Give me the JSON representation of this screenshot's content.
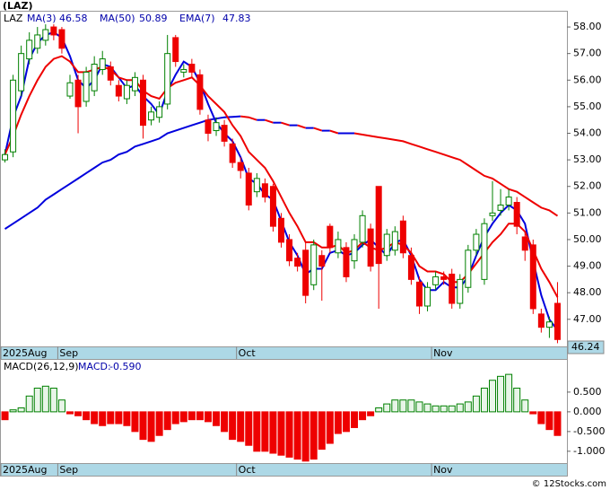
{
  "chart_data": [
    {
      "type": "candlestick",
      "title": "(LAZ)",
      "symbol": "LAZ",
      "categories": [
        "2025Aug",
        null,
        null,
        null,
        null,
        null,
        null,
        "Sep",
        null,
        null,
        null,
        null,
        null,
        null,
        null,
        null,
        null,
        null,
        null,
        null,
        null,
        null,
        null,
        null,
        null,
        null,
        null,
        null,
        null,
        "Oct",
        null,
        null,
        null,
        null,
        null,
        null,
        null,
        null,
        null,
        null,
        null,
        null,
        null,
        null,
        null,
        null,
        null,
        null,
        null,
        null,
        null,
        null,
        null,
        "Nov",
        null,
        null,
        null,
        null,
        null,
        null,
        null,
        null,
        null,
        null,
        null,
        null,
        null,
        null,
        null
      ],
      "open": [
        53.0,
        53.3,
        55.6,
        56.8,
        57.2,
        57.5,
        58.0,
        57.9,
        55.4,
        56.0,
        55.2,
        55.6,
        56.4,
        56.5,
        55.8,
        55.3,
        55.6,
        56.0,
        54.5,
        54.6,
        55.1,
        57.6,
        56.3,
        56.6,
        56.2,
        54.5,
        54.1,
        54.3,
        53.6,
        52.9,
        52.5,
        51.8,
        52.1,
        52.0,
        50.8,
        50.0,
        49.3,
        49.6,
        48.3,
        49.4,
        50.5,
        49.5,
        49.7,
        49.2,
        49.9,
        50.4,
        52.0,
        49.4,
        49.6,
        50.7,
        49.4,
        48.4,
        47.5,
        48.3,
        48.6,
        48.7,
        47.6,
        48.2,
        49.6,
        48.5,
        50.9,
        51.1,
        51.3,
        51.4,
        50.1,
        49.8,
        47.2,
        46.7,
        47.6
      ],
      "high": [
        53.4,
        56.2,
        57.3,
        57.8,
        58.0,
        58.1,
        58.1,
        58.0,
        56.2,
        56.2,
        56.5,
        56.9,
        57.1,
        56.7,
        56.0,
        56.0,
        56.3,
        56.2,
        55.0,
        55.2,
        57.7,
        57.7,
        56.6,
        56.8,
        56.4,
        54.7,
        54.6,
        54.5,
        53.8,
        53.1,
        52.7,
        52.5,
        52.3,
        52.1,
        51.0,
        50.2,
        49.5,
        49.9,
        50.0,
        49.6,
        50.6,
        50.3,
        49.9,
        50.2,
        51.1,
        50.6,
        52.0,
        50.4,
        50.5,
        50.9,
        49.7,
        48.6,
        48.4,
        48.8,
        48.8,
        48.9,
        48.7,
        49.8,
        50.4,
        50.8,
        52.2,
        51.9,
        51.9,
        51.6,
        50.3,
        50.0,
        47.4,
        47.1,
        48.4
      ],
      "low": [
        52.9,
        53.1,
        55.4,
        56.6,
        57.0,
        57.3,
        57.5,
        57.0,
        55.3,
        54.0,
        55.0,
        55.4,
        56.2,
        55.8,
        55.2,
        55.1,
        55.4,
        53.8,
        54.3,
        54.4,
        54.9,
        56.5,
        56.1,
        56.1,
        54.7,
        53.7,
        53.9,
        53.5,
        52.7,
        52.3,
        51.1,
        51.6,
        51.4,
        50.3,
        49.7,
        49.0,
        48.8,
        47.6,
        48.1,
        47.7,
        49.5,
        49.3,
        48.4,
        48.9,
        49.7,
        48.8,
        47.4,
        49.2,
        49.4,
        49.3,
        48.3,
        47.2,
        47.3,
        48.1,
        48.3,
        47.4,
        47.4,
        48.0,
        49.4,
        48.3,
        50.7,
        50.9,
        51.1,
        50.2,
        49.2,
        47.2,
        46.5,
        46.3,
        46.1
      ],
      "close": [
        53.2,
        56.0,
        57.0,
        57.5,
        57.7,
        57.9,
        57.7,
        57.2,
        55.9,
        55.0,
        56.3,
        56.6,
        56.8,
        56.0,
        55.4,
        55.8,
        56.1,
        54.3,
        54.8,
        55.0,
        57.0,
        56.7,
        56.4,
        56.3,
        54.9,
        54.0,
        54.4,
        53.7,
        52.9,
        52.6,
        51.3,
        52.3,
        51.6,
        50.5,
        49.9,
        49.2,
        49.0,
        47.9,
        49.8,
        49.0,
        49.7,
        50.0,
        48.6,
        50.0,
        50.9,
        49.0,
        49.1,
        50.2,
        50.3,
        49.5,
        48.5,
        47.5,
        48.2,
        48.6,
        48.5,
        47.6,
        48.5,
        49.6,
        50.2,
        50.6,
        51.0,
        51.3,
        51.6,
        50.5,
        49.6,
        47.4,
        46.7,
        46.9,
        46.24
      ],
      "up_color": "#008000",
      "down_color": "#ee0000",
      "series": [
        {
          "name": "MA(3)",
          "last": 46.58,
          "color": "#0000dd",
          "values": [
            53.2,
            54.6,
            55.4,
            56.8,
            57.4,
            57.7,
            57.8,
            57.6,
            56.9,
            56.0,
            55.7,
            56.0,
            56.6,
            56.5,
            56.1,
            55.7,
            55.8,
            55.4,
            55.1,
            54.7,
            55.6,
            56.2,
            56.7,
            56.5,
            55.9,
            55.1,
            54.4,
            54.0,
            53.7,
            53.1,
            52.3,
            52.1,
            51.7,
            51.5,
            50.7,
            49.9,
            49.4,
            48.7,
            48.9,
            48.9,
            49.5,
            49.6,
            49.4,
            49.5,
            49.8,
            50.0,
            49.7,
            49.4,
            49.9,
            50.0,
            49.4,
            48.5,
            48.1,
            48.1,
            48.4,
            48.2,
            48.2,
            48.6,
            49.4,
            50.1,
            50.6,
            51.0,
            51.3,
            51.1,
            50.6,
            49.2,
            47.9,
            47.0,
            46.58
          ]
        },
        {
          "name": "MA(50)",
          "last": 50.89,
          "up_color": "#0000dd",
          "down_color": "#ee0000",
          "values": [
            50.4,
            50.6,
            50.8,
            51.0,
            51.2,
            51.5,
            51.7,
            51.9,
            52.1,
            52.3,
            52.5,
            52.7,
            52.9,
            53.0,
            53.2,
            53.3,
            53.5,
            53.6,
            53.7,
            53.8,
            54.0,
            54.1,
            54.2,
            54.3,
            54.4,
            54.5,
            54.55,
            54.6,
            54.62,
            54.64,
            54.6,
            54.5,
            54.5,
            54.4,
            54.4,
            54.3,
            54.3,
            54.2,
            54.2,
            54.1,
            54.1,
            54.0,
            54.0,
            54.0,
            53.95,
            53.9,
            53.85,
            53.8,
            53.75,
            53.7,
            53.6,
            53.5,
            53.4,
            53.3,
            53.2,
            53.1,
            53.0,
            52.8,
            52.6,
            52.4,
            52.3,
            52.1,
            51.9,
            51.8,
            51.6,
            51.4,
            51.2,
            51.1,
            50.89
          ]
        },
        {
          "name": "EMA(7)",
          "last": 47.83,
          "color": "#ee0000",
          "values": [
            53.2,
            53.9,
            54.7,
            55.4,
            56.0,
            56.5,
            56.8,
            56.9,
            56.7,
            56.3,
            56.3,
            56.4,
            56.5,
            56.4,
            56.1,
            56.0,
            56.0,
            55.6,
            55.4,
            55.3,
            55.7,
            55.9,
            56.0,
            56.1,
            55.8,
            55.4,
            55.1,
            54.8,
            54.3,
            53.9,
            53.3,
            53.0,
            52.7,
            52.2,
            51.6,
            51.0,
            50.5,
            49.9,
            49.9,
            49.7,
            49.7,
            49.8,
            49.5,
            49.6,
            49.9,
            49.7,
            49.6,
            49.7,
            49.9,
            49.8,
            49.5,
            49.0,
            48.8,
            48.8,
            48.7,
            48.4,
            48.4,
            48.7,
            49.1,
            49.5,
            49.9,
            50.2,
            50.6,
            50.6,
            50.3,
            49.6,
            48.9,
            48.4,
            47.83
          ]
        }
      ],
      "ylim": [
        45.98,
        58.61
      ],
      "yticks": [
        {
          "value": 47,
          "label": "47.00"
        },
        {
          "value": 48,
          "label": "48.00"
        },
        {
          "value": 49,
          "label": "49.00"
        },
        {
          "value": 50,
          "label": "50.00"
        },
        {
          "value": 51,
          "label": "51.00"
        },
        {
          "value": 52,
          "label": "52.00"
        },
        {
          "value": 53,
          "label": "53.00"
        },
        {
          "value": 54,
          "label": "54.00"
        },
        {
          "value": 55,
          "label": "55.00"
        },
        {
          "value": 56,
          "label": "56.00"
        },
        {
          "value": 57,
          "label": "57.00"
        },
        {
          "value": 58,
          "label": "58.00"
        }
      ]
    },
    {
      "type": "bar",
      "title": "MACD(26,12,9)",
      "label": "MACD:",
      "macd": {
        "value": -0.59,
        "label": "-0.590"
      },
      "categories": [
        "2025Aug",
        null,
        null,
        null,
        null,
        null,
        null,
        "Sep",
        null,
        null,
        null,
        null,
        null,
        null,
        null,
        null,
        null,
        null,
        null,
        null,
        null,
        null,
        null,
        null,
        null,
        null,
        null,
        null,
        null,
        "Oct",
        null,
        null,
        null,
        null,
        null,
        null,
        null,
        null,
        null,
        null,
        null,
        null,
        null,
        null,
        null,
        null,
        null,
        null,
        null,
        null,
        null,
        null,
        null,
        "Nov",
        null,
        null,
        null,
        null,
        null,
        null,
        null,
        null,
        null,
        null,
        null,
        null,
        null,
        null,
        null
      ],
      "values": [
        -0.2,
        0.05,
        0.1,
        0.4,
        0.6,
        0.65,
        0.6,
        0.3,
        -0.05,
        -0.1,
        -0.2,
        -0.3,
        -0.35,
        -0.3,
        -0.3,
        -0.35,
        -0.5,
        -0.7,
        -0.75,
        -0.6,
        -0.45,
        -0.3,
        -0.25,
        -0.2,
        -0.2,
        -0.25,
        -0.35,
        -0.5,
        -0.7,
        -0.75,
        -0.85,
        -1.0,
        -1.0,
        -1.05,
        -1.1,
        -1.15,
        -1.2,
        -1.25,
        -1.2,
        -0.95,
        -0.8,
        -0.55,
        -0.5,
        -0.4,
        -0.2,
        -0.1,
        0.1,
        0.2,
        0.3,
        0.3,
        0.3,
        0.25,
        0.2,
        0.15,
        0.15,
        0.15,
        0.2,
        0.25,
        0.4,
        0.6,
        0.8,
        0.9,
        0.95,
        0.6,
        0.3,
        -0.05,
        -0.3,
        -0.45,
        -0.6
      ],
      "up_color": "#008000",
      "down_color": "#ee0000",
      "ylim": [
        -1.3,
        1.34
      ],
      "yticks": [
        {
          "value": 0.5,
          "label": "0.500"
        },
        {
          "value": 0,
          "label": "0.000"
        },
        {
          "value": -0.5,
          "label": "-0.500"
        },
        {
          "value": -1,
          "label": "-1.000"
        }
      ]
    }
  ],
  "credit": "© 12Stocks.com"
}
